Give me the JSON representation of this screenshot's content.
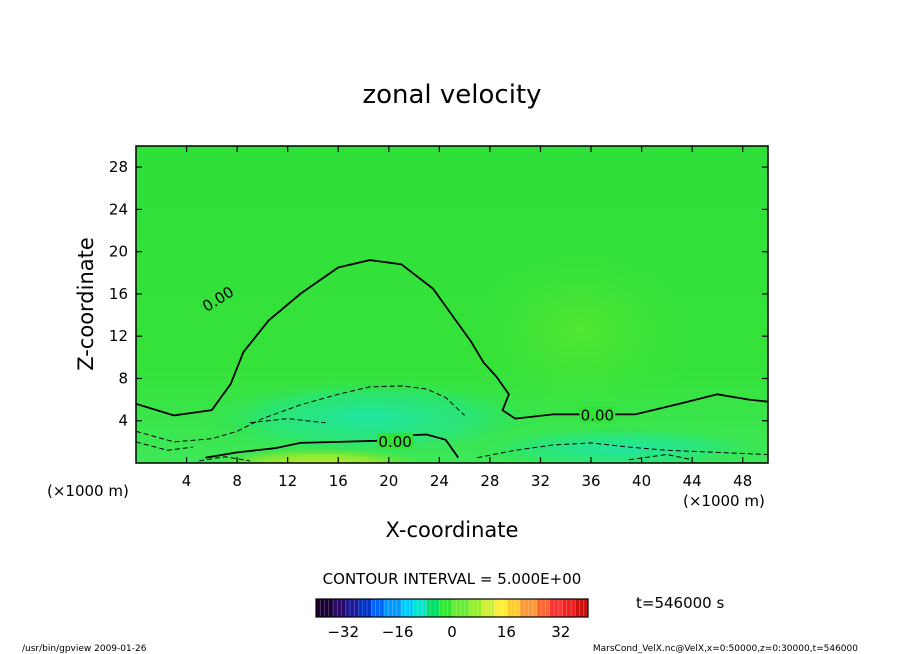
{
  "chart_data": {
    "type": "heatmap",
    "title": "zonal velocity",
    "xlabel": "X-coordinate",
    "ylabel": "Z-coordinate",
    "x_unit": "(×1000 m)",
    "y_unit": "(×1000 m)",
    "xlim": [
      0,
      50
    ],
    "ylim": [
      0,
      30
    ],
    "x_ticks": [
      4,
      8,
      12,
      16,
      20,
      24,
      28,
      32,
      36,
      40,
      44,
      48
    ],
    "y_ticks": [
      4,
      8,
      12,
      16,
      20,
      24,
      28
    ],
    "contour_interval_text": "CONTOUR INTERVAL = 5.000E+00",
    "time_text": "t=546000 s",
    "colorbar": {
      "min": -40,
      "max": 40,
      "ticks": [
        -32,
        -16,
        0,
        16,
        32
      ],
      "colors": [
        "#1a0033",
        "#2a0a66",
        "#1a1a99",
        "#0033cc",
        "#0066ff",
        "#0099ff",
        "#00ccff",
        "#00e5cc",
        "#00e066",
        "#33e633",
        "#66ee33",
        "#99ee33",
        "#ccee33",
        "#ffee33",
        "#ffcc33",
        "#ff9933",
        "#ff6633",
        "#ff3333",
        "#ee2222",
        "#cc1111"
      ]
    },
    "contour_labels": [
      {
        "text": "0.00",
        "x": 6.5,
        "z": 15.5
      },
      {
        "text": "0.00",
        "x": 36.5,
        "z": 4.5
      },
      {
        "text": "0.00",
        "x": 20.5,
        "z": 2.0
      }
    ],
    "zero_contour_upper": [
      [
        0,
        5.6
      ],
      [
        3,
        4.5
      ],
      [
        6,
        5.0
      ],
      [
        7.5,
        7.5
      ],
      [
        8.5,
        10.5
      ],
      [
        10.5,
        13.5
      ],
      [
        13,
        16
      ],
      [
        16,
        18.5
      ],
      [
        18.5,
        19.2
      ],
      [
        21,
        18.8
      ],
      [
        23.5,
        16.5
      ],
      [
        25,
        14
      ],
      [
        26.5,
        11.5
      ],
      [
        27.5,
        9.5
      ],
      [
        28.5,
        8.2
      ],
      [
        29.5,
        6.5
      ],
      [
        29,
        5
      ],
      [
        30,
        4.2
      ],
      [
        33,
        4.6
      ],
      [
        36,
        4.6
      ],
      [
        39.5,
        4.6
      ],
      [
        43,
        5.6
      ],
      [
        46,
        6.5
      ],
      [
        48.5,
        6.0
      ],
      [
        50,
        5.8
      ]
    ],
    "zero_contour_lower": [
      [
        5.5,
        0.5
      ],
      [
        8,
        1.0
      ],
      [
        11,
        1.4
      ],
      [
        13,
        1.9
      ],
      [
        16,
        2.0
      ],
      [
        19,
        2.1
      ],
      [
        21,
        2.6
      ],
      [
        23,
        2.7
      ],
      [
        24.5,
        2.2
      ],
      [
        25.5,
        0.5
      ]
    ],
    "dashed_contours": [
      [
        [
          0,
          3.0
        ],
        [
          3,
          2.0
        ],
        [
          6,
          2.3
        ],
        [
          8,
          3.0
        ],
        [
          10,
          4.2
        ],
        [
          13,
          5.5
        ],
        [
          16,
          6.5
        ],
        [
          18.5,
          7.2
        ],
        [
          21,
          7.3
        ],
        [
          23,
          7.0
        ],
        [
          24.5,
          6.2
        ],
        [
          26,
          4.5
        ]
      ],
      [
        [
          9,
          3.8
        ],
        [
          12,
          4.2
        ],
        [
          15,
          3.8
        ]
      ],
      [
        [
          0,
          2.0
        ],
        [
          2.5,
          1.2
        ],
        [
          4.5,
          1.5
        ]
      ],
      [
        [
          27,
          0.5
        ],
        [
          30,
          1.2
        ],
        [
          33,
          1.7
        ],
        [
          36,
          1.9
        ],
        [
          39,
          1.5
        ],
        [
          42,
          1.2
        ],
        [
          46,
          1.0
        ],
        [
          50,
          0.8
        ]
      ],
      [
        [
          39,
          0.3
        ],
        [
          42,
          0.8
        ],
        [
          44,
          0.3
        ]
      ],
      [
        [
          5,
          0.2
        ],
        [
          7,
          0.6
        ],
        [
          9,
          0.2
        ]
      ]
    ],
    "footer_left": "/usr/bin/gpview   2009-01-26",
    "footer_right": "MarsCond_VelX.nc@VelX,x=0:50000,z=0:30000,t=546000"
  }
}
